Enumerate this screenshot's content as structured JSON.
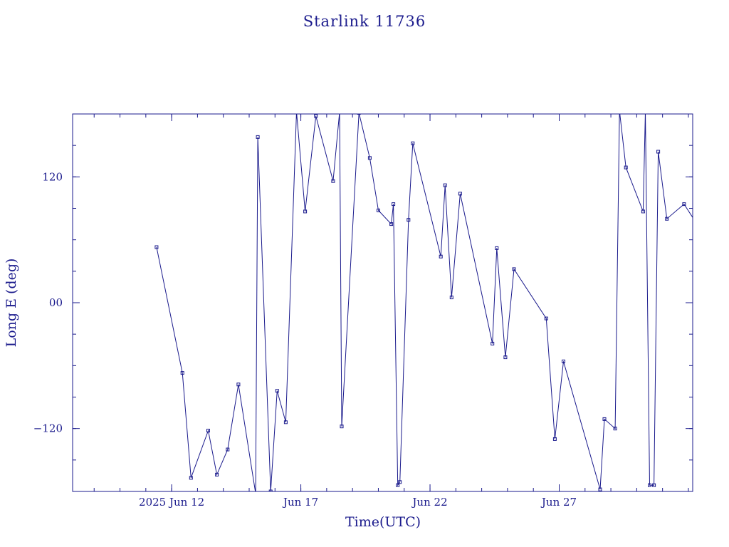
{
  "chart_data": {
    "type": "line",
    "title": "Starlink 11736",
    "xlabel": "Time(UTC)",
    "ylabel": "Long E (deg)",
    "x_unit": "days",
    "xlim": [
      "2025-06-08 04:00",
      "2025-07-02 04:00"
    ],
    "ylim": [
      -180,
      180
    ],
    "x_ticks": [
      {
        "label": "2025 Jun 12",
        "value": "2025-06-12"
      },
      {
        "label": "Jun 17",
        "value": "2025-06-17"
      },
      {
        "label": "Jun 22",
        "value": "2025-06-22"
      },
      {
        "label": "Jun 27",
        "value": "2025-06-27"
      }
    ],
    "y_ticks": [
      {
        "label": "120",
        "value": 120
      },
      {
        "label": "00",
        "value": 0
      },
      {
        "label": "−120",
        "value": -120
      }
    ],
    "color": "#1a1a8c",
    "grid": false,
    "series": [
      {
        "name": "",
        "points": [
          [
            "2025-06-11 10:00",
            53
          ],
          [
            "2025-06-12 10:00",
            -67
          ],
          [
            "2025-06-12 18:00",
            -167
          ],
          [
            "2025-06-13 10:00",
            -122
          ],
          [
            "2025-06-13 18:00",
            -164
          ],
          [
            "2025-06-14 04:00",
            -140
          ],
          [
            "2025-06-14 14:00",
            -78
          ],
          [
            "2025-06-15 06:00",
            -182
          ],
          [
            "2025-06-15 08:00",
            158
          ],
          [
            "2025-06-15 20:00",
            -180
          ],
          [
            "2025-06-16 02:00",
            -84
          ],
          [
            "2025-06-16 10:00",
            -114
          ],
          [
            "2025-06-16 20:00",
            182
          ],
          [
            "2025-06-17 04:00",
            87
          ],
          [
            "2025-06-17 14:00",
            178
          ],
          [
            "2025-06-18 06:00",
            116
          ],
          [
            "2025-06-18 12:00",
            182
          ],
          [
            "2025-06-18 14:00",
            -118
          ],
          [
            "2025-06-19 06:00",
            181
          ],
          [
            "2025-06-19 16:00",
            138
          ],
          [
            "2025-06-20 00:00",
            88
          ],
          [
            "2025-06-20 12:00",
            75
          ],
          [
            "2025-06-20 14:00",
            94
          ],
          [
            "2025-06-20 18:00",
            -174
          ],
          [
            "2025-06-20 20:00",
            -171
          ],
          [
            "2025-06-21 04:00",
            79
          ],
          [
            "2025-06-21 08:00",
            152
          ],
          [
            "2025-06-22 10:00",
            44
          ],
          [
            "2025-06-22 14:00",
            112
          ],
          [
            "2025-06-22 20:00",
            5
          ],
          [
            "2025-06-23 04:00",
            104
          ],
          [
            "2025-06-24 10:00",
            -39
          ],
          [
            "2025-06-24 14:00",
            52
          ],
          [
            "2025-06-24 22:00",
            -52
          ],
          [
            "2025-06-25 06:00",
            32
          ],
          [
            "2025-06-26 12:00",
            -15
          ],
          [
            "2025-06-26 20:00",
            -130
          ],
          [
            "2025-06-27 04:00",
            -56
          ],
          [
            "2025-06-28 14:00",
            -178
          ],
          [
            "2025-06-28 18:00",
            -111
          ],
          [
            "2025-06-29 04:00",
            -120
          ],
          [
            "2025-06-29 08:00",
            183
          ],
          [
            "2025-06-29 14:00",
            129
          ],
          [
            "2025-06-30 06:00",
            87
          ],
          [
            "2025-06-30 08:00",
            182
          ],
          [
            "2025-06-30 12:00",
            -174
          ],
          [
            "2025-06-30 16:00",
            -174
          ],
          [
            "2025-06-30 20:00",
            144
          ],
          [
            "2025-07-01 04:00",
            80
          ],
          [
            "2025-07-01 20:00",
            94
          ],
          [
            "2025-07-02 08:00",
            75
          ]
        ]
      }
    ]
  }
}
